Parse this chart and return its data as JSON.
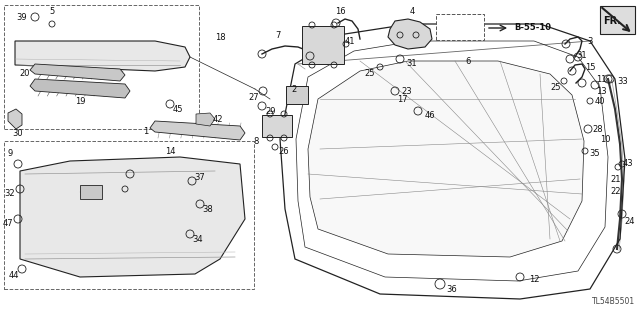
{
  "background_color": "#ffffff",
  "diagram_id": "TL54B5501",
  "ref_label": "B-55-10",
  "fr_label": "FR.",
  "fig_width": 6.4,
  "fig_height": 3.19,
  "dpi": 100
}
